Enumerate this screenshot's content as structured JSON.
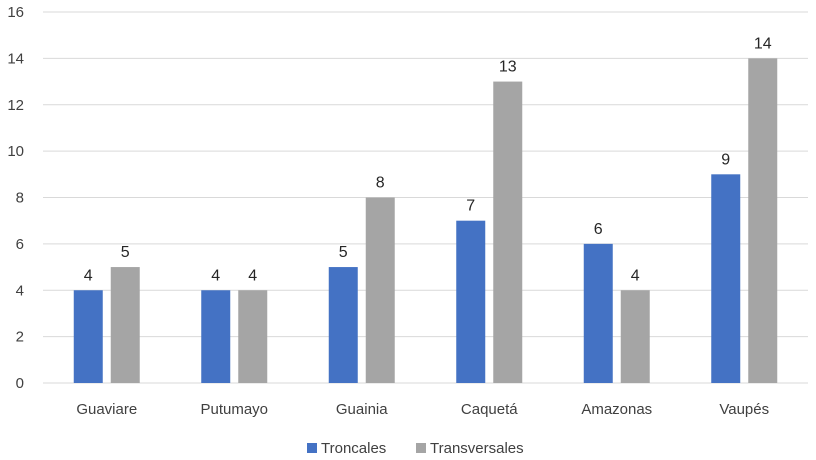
{
  "chart_data": {
    "type": "bar",
    "categories": [
      "Guaviare",
      "Putumayo",
      "Guainia",
      "Caquetá",
      "Amazonas",
      "Vaupés"
    ],
    "series": [
      {
        "name": "Troncales",
        "values": [
          4,
          4,
          5,
          7,
          6,
          9
        ],
        "color": "#4472C4"
      },
      {
        "name": "Transversales",
        "values": [
          5,
          4,
          8,
          13,
          4,
          14
        ],
        "color": "#A5A5A5"
      }
    ],
    "ylim": [
      0,
      16
    ],
    "yticks": [
      "0",
      "2",
      "4",
      "6",
      "8",
      "10",
      "12",
      "14",
      "16"
    ],
    "grid": true,
    "legend": "bottom",
    "data_labels": true
  }
}
